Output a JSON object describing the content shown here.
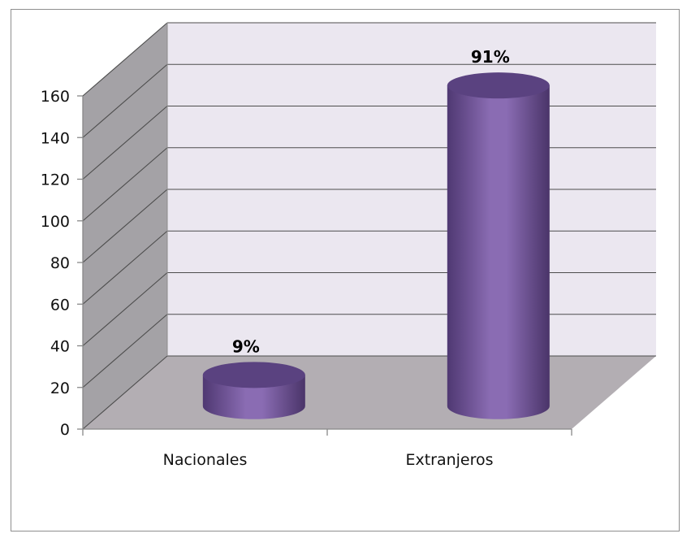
{
  "chart_data": {
    "type": "bar",
    "style": "3d-cylinder",
    "categories": [
      "Nacionales",
      "Extranjeros"
    ],
    "values": [
      15,
      154
    ],
    "data_labels": [
      "9%",
      "91%"
    ],
    "title": "",
    "xlabel": "",
    "ylabel": "",
    "ylim": [
      0,
      160
    ],
    "yticks": [
      0,
      20,
      40,
      60,
      80,
      100,
      120,
      140,
      160
    ],
    "grid": true,
    "legend": "none",
    "colors": {
      "bar": "#7d5fa6",
      "bar_dark": "#5a4280",
      "back_wall": "#ebe7f0",
      "side_wall": "#a4a2a6",
      "floor": "#b3aeb3",
      "gridline": "#4d4d4d"
    }
  }
}
